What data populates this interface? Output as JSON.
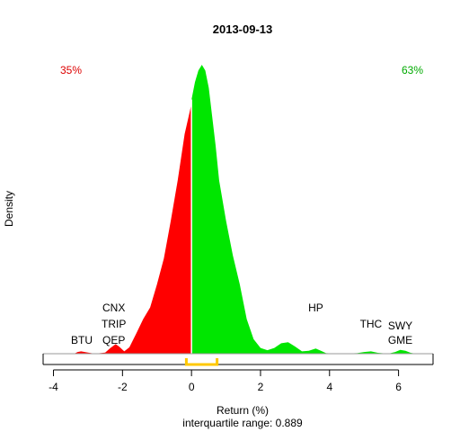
{
  "chart_data": {
    "type": "area",
    "title": "2013-09-13",
    "xlabel": "Return (%)",
    "subtitle": "interquartile range: 0.889",
    "ylabel": "Density",
    "xlim": [
      -4.3,
      7.0
    ],
    "ylim": [
      0,
      1
    ],
    "x_ticks": [
      -4,
      -2,
      0,
      2,
      4,
      6
    ],
    "grid": false,
    "split_at": 0,
    "left_pct_label": "35%",
    "right_pct_label": "63%",
    "colors": {
      "negative": "#ff0000",
      "positive": "#00e600",
      "iqr": "#ffc800",
      "left_pct": "#dd0000",
      "right_pct": "#00aa00"
    },
    "iqr": [
      -0.15,
      0.74
    ],
    "density": [
      [
        -3.4,
        0.0
      ],
      [
        -3.3,
        0.006
      ],
      [
        -3.2,
        0.008
      ],
      [
        -3.0,
        0.004
      ],
      [
        -2.8,
        0.0
      ],
      [
        -2.5,
        0.004
      ],
      [
        -2.35,
        0.02
      ],
      [
        -2.2,
        0.033
      ],
      [
        -2.1,
        0.025
      ],
      [
        -1.95,
        0.008
      ],
      [
        -1.8,
        0.022
      ],
      [
        -1.6,
        0.07
      ],
      [
        -1.4,
        0.12
      ],
      [
        -1.2,
        0.16
      ],
      [
        -1.0,
        0.24
      ],
      [
        -0.8,
        0.33
      ],
      [
        -0.6,
        0.46
      ],
      [
        -0.4,
        0.6
      ],
      [
        -0.2,
        0.76
      ],
      [
        -0.01,
        0.86
      ],
      [
        0.0,
        0.88
      ],
      [
        0.1,
        0.94
      ],
      [
        0.2,
        0.98
      ],
      [
        0.3,
        1.0
      ],
      [
        0.4,
        0.98
      ],
      [
        0.5,
        0.92
      ],
      [
        0.6,
        0.82
      ],
      [
        0.7,
        0.72
      ],
      [
        0.8,
        0.6
      ],
      [
        1.0,
        0.46
      ],
      [
        1.2,
        0.34
      ],
      [
        1.4,
        0.24
      ],
      [
        1.6,
        0.12
      ],
      [
        1.8,
        0.05
      ],
      [
        2.0,
        0.02
      ],
      [
        2.2,
        0.012
      ],
      [
        2.4,
        0.02
      ],
      [
        2.6,
        0.036
      ],
      [
        2.8,
        0.04
      ],
      [
        3.0,
        0.025
      ],
      [
        3.2,
        0.008
      ],
      [
        3.4,
        0.01
      ],
      [
        3.6,
        0.018
      ],
      [
        3.75,
        0.01
      ],
      [
        3.9,
        0.002
      ],
      [
        4.3,
        0.0
      ],
      [
        4.8,
        0.002
      ],
      [
        5.0,
        0.006
      ],
      [
        5.2,
        0.008
      ],
      [
        5.4,
        0.003
      ],
      [
        5.7,
        0.0
      ],
      [
        5.9,
        0.006
      ],
      [
        6.05,
        0.013
      ],
      [
        6.2,
        0.01
      ],
      [
        6.35,
        0.003
      ],
      [
        6.5,
        0.0
      ]
    ],
    "annotations": [
      {
        "label": "BTU",
        "x": -3.18,
        "line": 0
      },
      {
        "label": "QEP",
        "x": -2.25,
        "line": 0
      },
      {
        "label": "TRIP",
        "x": -2.25,
        "line": 1
      },
      {
        "label": "CNX",
        "x": -2.25,
        "line": 2
      },
      {
        "label": "HP",
        "x": 3.6,
        "line": 2
      },
      {
        "label": "THC",
        "x": 5.2,
        "line": 1
      },
      {
        "label": "GME",
        "x": 6.05,
        "line": 0
      },
      {
        "label": "SWY",
        "x": 6.05,
        "line": 0.9
      }
    ]
  }
}
